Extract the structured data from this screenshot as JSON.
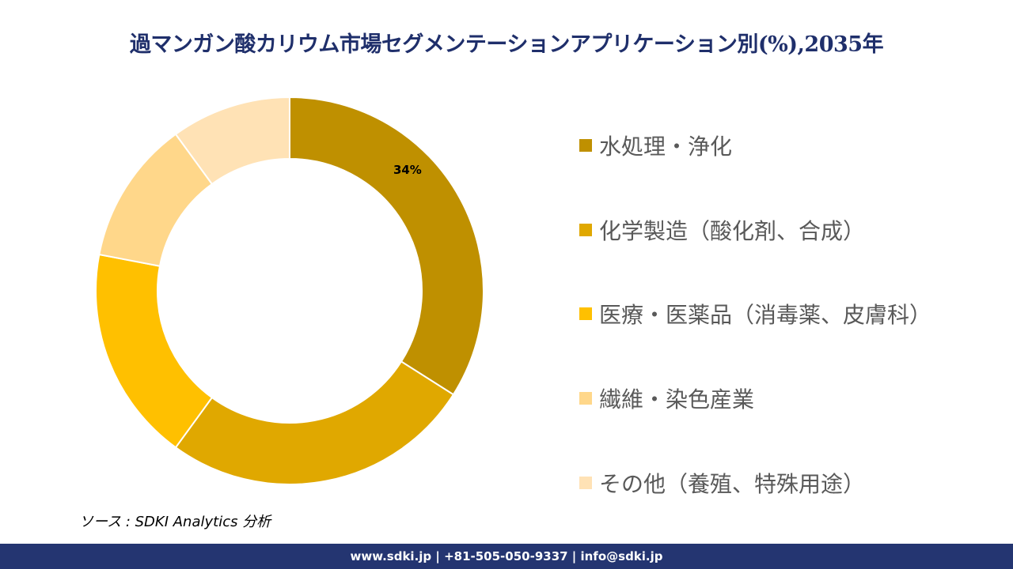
{
  "title": "過マンガン酸カリウム市場セグメンテーションアプリケーション別(%),2035年",
  "chart_data": {
    "type": "pie",
    "variant": "donut",
    "title": "過マンガン酸カリウム市場セグメンテーションアプリケーション別(%),2035年",
    "categories": [
      "水処理・浄化",
      "化学製造（酸化剤、合成）",
      "医療・医薬品（消毒薬、皮膚科）",
      "繊維・染色産業",
      "その他（養殖、特殊用途）"
    ],
    "values": [
      34,
      26,
      18,
      12,
      10
    ],
    "data_labels": [
      "34%",
      "",
      "",
      "",
      ""
    ],
    "colors": [
      "#BF9000",
      "#E0A800",
      "#FFC000",
      "#FFD78A",
      "#FFE2B5"
    ],
    "legend_position": "right"
  },
  "source": "ソース : SDKI Analytics 分析",
  "footer": "www.sdki.jp | +81-505-050-9337 | info@sdki.jp"
}
